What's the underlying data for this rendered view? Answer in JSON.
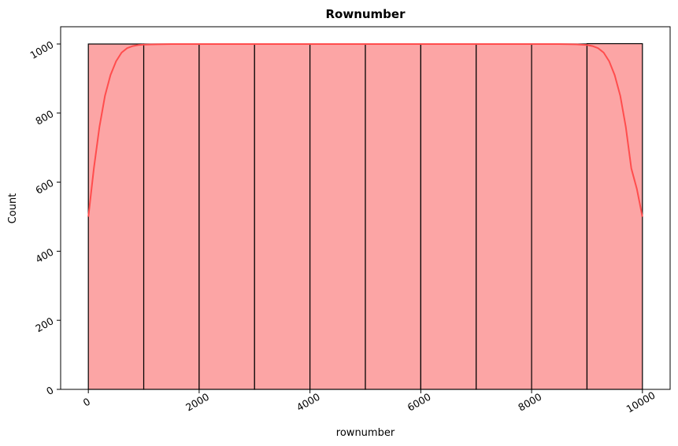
{
  "chart_data": {
    "type": "bar",
    "title": "Rownumber",
    "xlabel": "rownumber",
    "ylabel": "Count",
    "xlim": [
      -500,
      10500
    ],
    "ylim": [
      0,
      1050
    ],
    "xticks": [
      0,
      2000,
      4000,
      6000,
      8000,
      10000
    ],
    "yticks": [
      0,
      200,
      400,
      600,
      800,
      1000
    ],
    "bins": [
      {
        "start": 0,
        "end": 1000,
        "count": 1000
      },
      {
        "start": 1000,
        "end": 2000,
        "count": 1000
      },
      {
        "start": 2000,
        "end": 3000,
        "count": 1000
      },
      {
        "start": 3000,
        "end": 4000,
        "count": 1000
      },
      {
        "start": 4000,
        "end": 5000,
        "count": 1000
      },
      {
        "start": 5000,
        "end": 6000,
        "count": 1000
      },
      {
        "start": 6000,
        "end": 7000,
        "count": 1000
      },
      {
        "start": 7000,
        "end": 8000,
        "count": 1000
      },
      {
        "start": 8000,
        "end": 9000,
        "count": 1000
      },
      {
        "start": 9000,
        "end": 10000,
        "count": 1001
      }
    ],
    "kde": {
      "x": [
        0,
        100,
        200,
        300,
        400,
        500,
        600,
        700,
        800,
        900,
        1000,
        1200,
        1500,
        2000,
        3000,
        4000,
        5000,
        6000,
        7000,
        8000,
        8500,
        8800,
        9000,
        9100,
        9200,
        9300,
        9400,
        9500,
        9600,
        9700,
        9800,
        9900,
        10000
      ],
      "y": [
        500,
        640,
        760,
        850,
        910,
        950,
        975,
        988,
        994,
        997,
        998,
        999,
        1000,
        1000,
        1000,
        1000,
        1000,
        1000,
        1000,
        1000,
        1000,
        999,
        997,
        994,
        988,
        975,
        950,
        910,
        850,
        760,
        640,
        580,
        500
      ]
    },
    "grid": false,
    "colors": {
      "bar_fill": "#fca5a5",
      "bar_edge": "#000000",
      "kde_line": "#ff4d4d"
    }
  }
}
